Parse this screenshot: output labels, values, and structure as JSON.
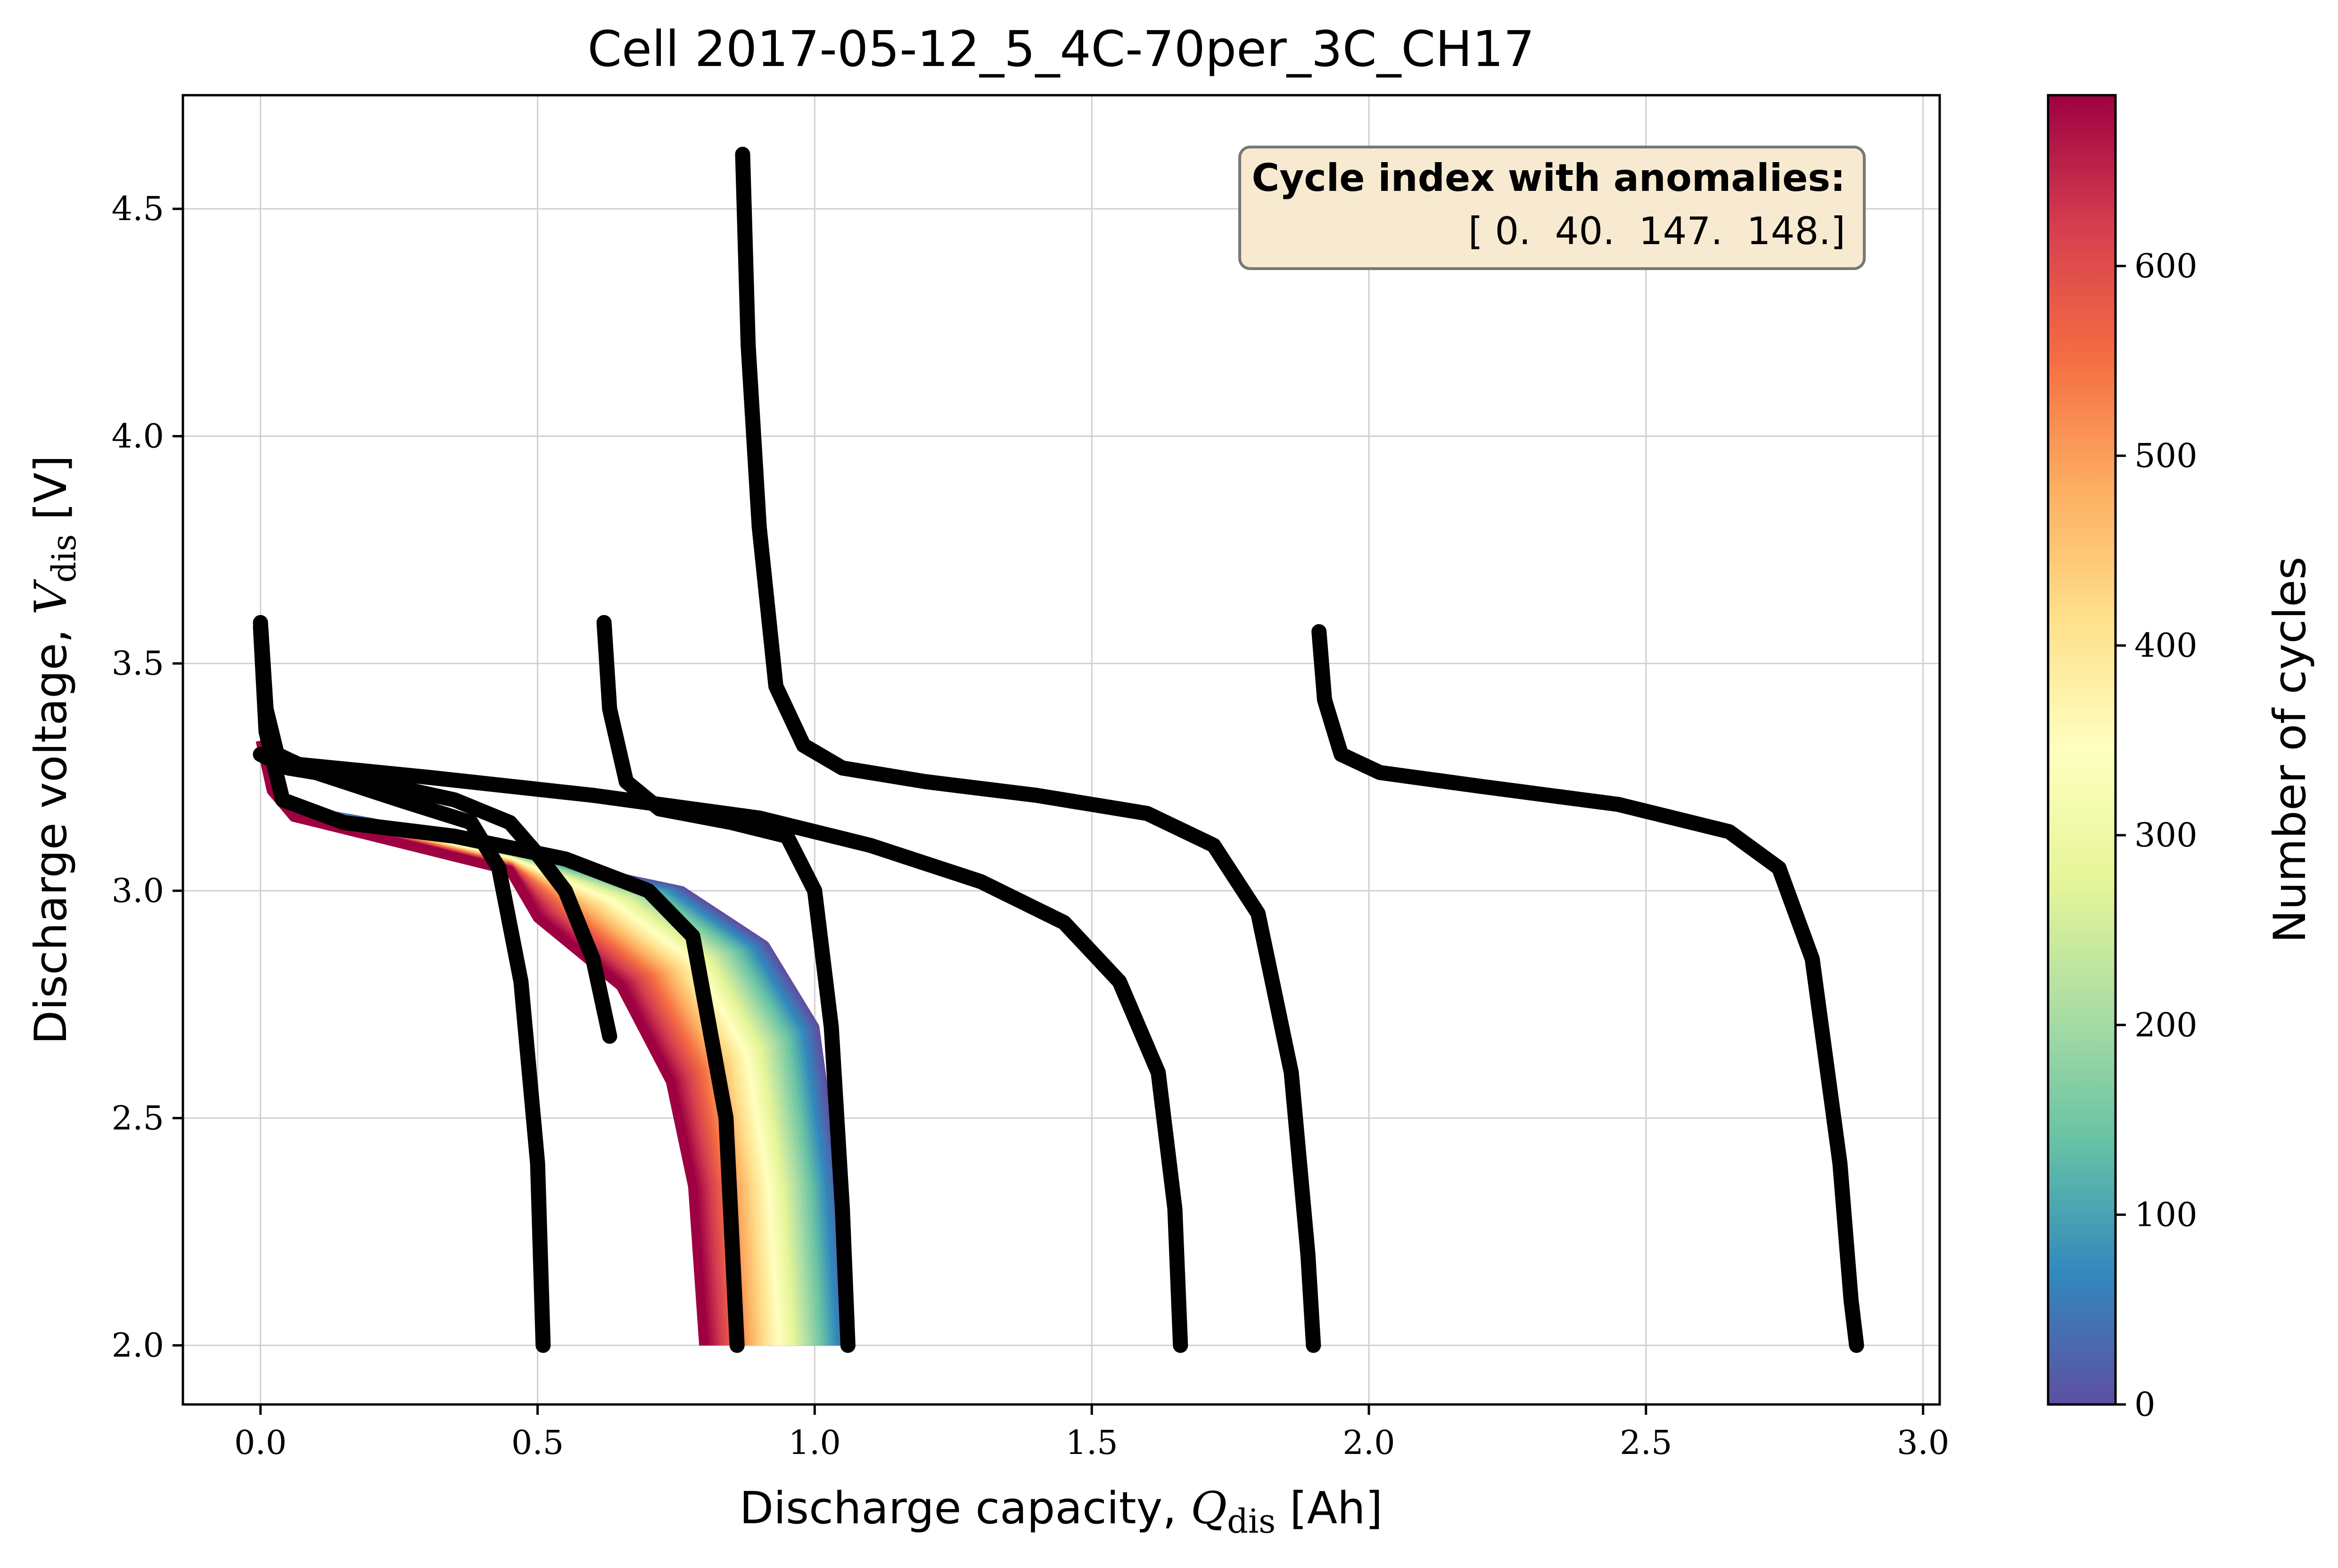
{
  "chart_data": {
    "type": "line",
    "title": "Cell 2017-05-12_5_4C-70per_3C_CH17",
    "xlabel": "Discharge capacity, Qdis [Ah]",
    "xlabel_main": "Discharge capacity, ",
    "xlabel_sym": "Q",
    "xlabel_sub": "dis",
    "xlabel_unit": " [Ah]",
    "ylabel": "Discharge voltage, Vdis [V]",
    "ylabel_main": "Discharge voltage, ",
    "ylabel_sym": "V",
    "ylabel_sub": "dis",
    "ylabel_unit": " [V]",
    "xlim": [
      -0.14,
      3.03
    ],
    "ylim": [
      1.87,
      4.75
    ],
    "xticks": [
      "0.0",
      "0.5",
      "1.0",
      "1.5",
      "2.0",
      "2.5",
      "3.0"
    ],
    "yticks": [
      "2.0",
      "2.5",
      "3.0",
      "3.5",
      "4.0",
      "4.5"
    ],
    "grid": true,
    "colorbar": {
      "label": "Number of cycles",
      "colormap": "Spectral_r",
      "range": [
        0,
        690
      ],
      "ticks": [
        "0",
        "100",
        "200",
        "300",
        "400",
        "500",
        "600"
      ],
      "colors": [
        "#5e4fa2",
        "#3288bd",
        "#66c2a5",
        "#abdda4",
        "#e6f598",
        "#ffffbf",
        "#fee08b",
        "#fdae61",
        "#f46d43",
        "#d53e4f",
        "#9e0142"
      ]
    },
    "annotation": {
      "title": "Cycle index with anomalies:",
      "value": "[ 0.  40.  147.  148.]",
      "position": "top-right",
      "background": "#f7ead1"
    },
    "normal_cycles": {
      "description_range": [
        0,
        690
      ],
      "end_capacity_first": 1.06,
      "end_capacity_last": 0.8
    },
    "series": [
      {
        "color": "#000000",
        "points": [
          [
            0.0,
            3.3
          ],
          [
            0.05,
            3.27
          ],
          [
            0.2,
            3.24
          ],
          [
            0.35,
            3.2
          ],
          [
            0.45,
            3.15
          ],
          [
            0.5,
            3.08
          ],
          [
            0.55,
            3.0
          ],
          [
            0.6,
            2.85
          ],
          [
            0.63,
            2.68
          ]
        ]
      },
      {
        "color": "#000000",
        "points": [
          [
            0.0,
            3.59
          ],
          [
            0.01,
            3.4
          ],
          [
            0.03,
            3.3
          ],
          [
            0.1,
            3.26
          ],
          [
            0.25,
            3.2
          ],
          [
            0.38,
            3.15
          ],
          [
            0.43,
            3.05
          ],
          [
            0.47,
            2.8
          ],
          [
            0.5,
            2.4
          ],
          [
            0.51,
            2.0
          ]
        ]
      },
      {
        "color": "#000000",
        "points": [
          [
            0.0,
            3.58
          ],
          [
            0.01,
            3.35
          ],
          [
            0.04,
            3.2
          ],
          [
            0.15,
            3.15
          ],
          [
            0.35,
            3.12
          ],
          [
            0.55,
            3.07
          ],
          [
            0.7,
            3.0
          ],
          [
            0.78,
            2.9
          ],
          [
            0.84,
            2.5
          ],
          [
            0.86,
            2.0
          ]
        ]
      },
      {
        "color": "#000000",
        "points": [
          [
            0.0,
            3.3
          ],
          [
            0.05,
            3.28
          ],
          [
            0.3,
            3.25
          ],
          [
            0.6,
            3.21
          ],
          [
            0.9,
            3.16
          ],
          [
            1.1,
            3.1
          ],
          [
            1.3,
            3.02
          ],
          [
            1.45,
            2.93
          ],
          [
            1.55,
            2.8
          ],
          [
            1.62,
            2.6
          ],
          [
            1.65,
            2.3
          ],
          [
            1.66,
            2.0
          ]
        ]
      },
      {
        "color": "#000000",
        "points": [
          [
            0.62,
            3.59
          ],
          [
            0.63,
            3.4
          ],
          [
            0.66,
            3.24
          ],
          [
            0.72,
            3.18
          ],
          [
            0.85,
            3.15
          ],
          [
            0.95,
            3.12
          ],
          [
            1.0,
            3.0
          ],
          [
            1.03,
            2.7
          ],
          [
            1.05,
            2.3
          ],
          [
            1.06,
            2.0
          ]
        ]
      },
      {
        "color": "#000000",
        "points": [
          [
            0.87,
            4.62
          ],
          [
            0.88,
            4.2
          ],
          [
            0.9,
            3.8
          ],
          [
            0.93,
            3.45
          ],
          [
            0.98,
            3.32
          ],
          [
            1.05,
            3.27
          ],
          [
            1.2,
            3.24
          ],
          [
            1.4,
            3.21
          ],
          [
            1.6,
            3.17
          ],
          [
            1.72,
            3.1
          ],
          [
            1.8,
            2.95
          ],
          [
            1.86,
            2.6
          ],
          [
            1.89,
            2.2
          ],
          [
            1.9,
            2.0
          ]
        ]
      },
      {
        "color": "#000000",
        "points": [
          [
            1.91,
            3.57
          ],
          [
            1.92,
            3.42
          ],
          [
            1.95,
            3.3
          ],
          [
            2.02,
            3.26
          ],
          [
            2.2,
            3.23
          ],
          [
            2.45,
            3.19
          ],
          [
            2.65,
            3.13
          ],
          [
            2.74,
            3.05
          ],
          [
            2.8,
            2.85
          ],
          [
            2.85,
            2.4
          ],
          [
            2.87,
            2.1
          ],
          [
            2.88,
            2.0
          ]
        ]
      }
    ]
  }
}
